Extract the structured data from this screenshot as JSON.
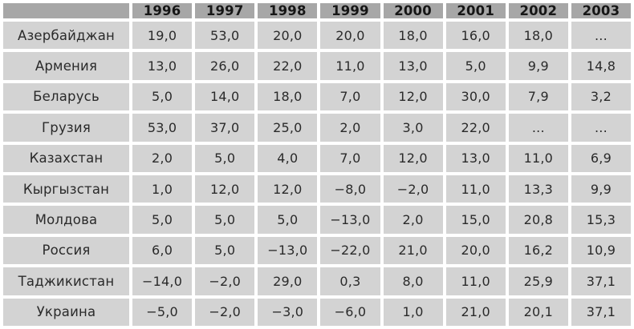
{
  "table": {
    "corner_label": "",
    "years": [
      "1996",
      "1997",
      "1998",
      "1999",
      "2000",
      "2001",
      "2002",
      "2003"
    ],
    "rows": [
      {
        "country": "Азербайджан",
        "values": [
          "19,0",
          "53,0",
          "20,0",
          "20,0",
          "18,0",
          "16,0",
          "18,0",
          "..."
        ]
      },
      {
        "country": "Армения",
        "values": [
          "13,0",
          "26,0",
          "22,0",
          "11,0",
          "13,0",
          "5,0",
          "9,9",
          "14,8"
        ]
      },
      {
        "country": "Беларусь",
        "values": [
          "5,0",
          "14,0",
          "18,0",
          "7,0",
          "12,0",
          "30,0",
          "7,9",
          "3,2"
        ]
      },
      {
        "country": "Грузия",
        "values": [
          "53,0",
          "37,0",
          "25,0",
          "2,0",
          "3,0",
          "22,0",
          "...",
          "..."
        ]
      },
      {
        "country": "Казахстан",
        "values": [
          "2,0",
          "5,0",
          "4,0",
          "7,0",
          "12,0",
          "13,0",
          "11,0",
          "6,9"
        ]
      },
      {
        "country": "Кыргызстан",
        "values": [
          "1,0",
          "12,0",
          "12,0",
          "−8,0",
          "−2,0",
          "11,0",
          "13,3",
          "9,9"
        ]
      },
      {
        "country": "Молдова",
        "values": [
          "5,0",
          "5,0",
          "5,0",
          "−13,0",
          "2,0",
          "15,0",
          "20,8",
          "15,3"
        ]
      },
      {
        "country": "Россия",
        "values": [
          "6,0",
          "5,0",
          "−13,0",
          "−22,0",
          "21,0",
          "20,0",
          "16,2",
          "10,9"
        ]
      },
      {
        "country": "Таджикистан",
        "values": [
          "−14,0",
          "−2,0",
          "29,0",
          "0,3",
          "8,0",
          "11,0",
          "25,9",
          "37,1"
        ]
      },
      {
        "country": "Украина",
        "values": [
          "−5,0",
          "−2,0",
          "−3,0",
          "−6,0",
          "1,0",
          "21,0",
          "20,1",
          "37,1"
        ]
      }
    ],
    "colors": {
      "header_bg": "#a7a7a7",
      "cell_bg": "#d3d3d3",
      "gap": "#ffffff",
      "text": "#2a2a2a"
    }
  }
}
